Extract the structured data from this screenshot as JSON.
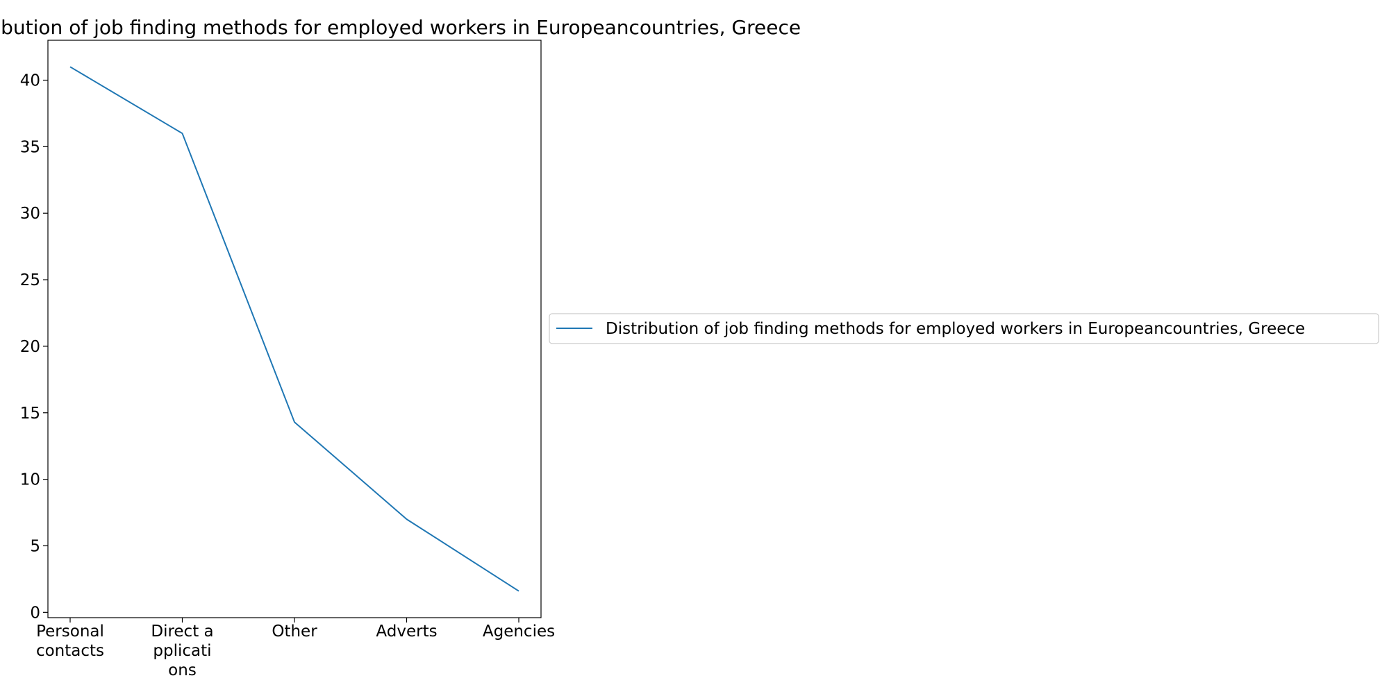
{
  "chart_data": {
    "type": "line",
    "title": "Distribution of job finding methods for employed workers in Europeancountries, Greece",
    "xlabel": "",
    "ylabel": "",
    "categories": [
      "Personal contacts",
      "Direct applications",
      "Other",
      "Adverts",
      "Agencies"
    ],
    "category_tick_lines": [
      [
        "Personal",
        "contacts"
      ],
      [
        "Direct a",
        "pplicati",
        "ons"
      ],
      [
        "Other"
      ],
      [
        "Adverts"
      ],
      [
        "Agencies"
      ]
    ],
    "series": [
      {
        "name": "Distribution of job finding methods for employed workers in Europeancountries, Greece",
        "values": [
          41,
          36,
          14.3,
          7,
          1.6
        ],
        "color": "#1f77b4"
      }
    ],
    "ylim": [
      -0.4,
      43
    ],
    "yticks": [
      0,
      5,
      10,
      15,
      20,
      25,
      30,
      35,
      40
    ],
    "grid": false,
    "legend_position": "center-right"
  }
}
